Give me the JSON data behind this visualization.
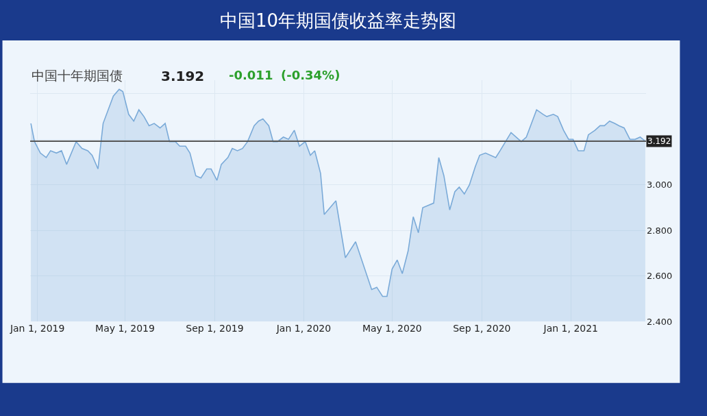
{
  "chart_data": {
    "type": "area",
    "title": "中国10年期国债收益率走势图",
    "subtitle": "中国十年期国债",
    "annotations": [
      "3.192",
      "-0.011",
      "(-0.34%)"
    ],
    "x": [
      "2018-12-23",
      "2018-12-28",
      "2019-01-05",
      "2019-01-13",
      "2019-01-19",
      "2019-01-27",
      "2019-02-03",
      "2019-02-10",
      "2019-02-23",
      "2019-03-03",
      "2019-03-11",
      "2019-03-17",
      "2019-03-25",
      "2019-04-01",
      "2019-04-15",
      "2019-04-23",
      "2019-04-28",
      "2019-05-06",
      "2019-05-13",
      "2019-05-20",
      "2019-05-27",
      "2019-06-03",
      "2019-06-10",
      "2019-06-18",
      "2019-06-25",
      "2019-07-01",
      "2019-07-09",
      "2019-07-15",
      "2019-07-23",
      "2019-07-29",
      "2019-08-06",
      "2019-08-13",
      "2019-08-21",
      "2019-08-27",
      "2019-09-04",
      "2019-09-10",
      "2019-09-19",
      "2019-09-25",
      "2019-10-02",
      "2019-10-09",
      "2019-10-16",
      "2019-10-25",
      "2019-10-31",
      "2019-11-06",
      "2019-11-14",
      "2019-11-20",
      "2019-11-26",
      "2019-12-04",
      "2019-12-11",
      "2019-12-19",
      "2019-12-26",
      "2020-01-03",
      "2020-01-10",
      "2020-01-16",
      "2020-01-24",
      "2020-01-29",
      "2020-02-14",
      "2020-02-27",
      "2020-03-12",
      "2020-04-03",
      "2020-04-10",
      "2020-04-18",
      "2020-04-24",
      "2020-05-01",
      "2020-05-08",
      "2020-05-15",
      "2020-05-23",
      "2020-05-30",
      "2020-06-06",
      "2020-06-12",
      "2020-06-27",
      "2020-07-04",
      "2020-07-11",
      "2020-07-19",
      "2020-07-26",
      "2020-08-01",
      "2020-08-08",
      "2020-08-15",
      "2020-08-23",
      "2020-08-29",
      "2020-09-06",
      "2020-09-20",
      "2020-09-26",
      "2020-10-11",
      "2020-10-25",
      "2020-11-01",
      "2020-11-15",
      "2020-11-24",
      "2020-11-29",
      "2020-12-08",
      "2020-12-14",
      "2020-12-22",
      "2020-12-29",
      "2021-01-04",
      "2021-01-11",
      "2021-01-19",
      "2021-01-25",
      "2021-02-03",
      "2021-02-10",
      "2021-02-16",
      "2021-02-23",
      "2021-03-02",
      "2021-03-08",
      "2021-03-15",
      "2021-03-23",
      "2021-03-30",
      "2021-04-06",
      "2021-04-13"
    ],
    "series": [
      {
        "color": "#7aaad8",
        "values": [
          3.27,
          3.19,
          3.14,
          3.12,
          3.15,
          3.14,
          3.15,
          3.09,
          3.19,
          3.16,
          3.15,
          3.13,
          3.07,
          3.27,
          3.39,
          3.42,
          3.41,
          3.31,
          3.28,
          3.33,
          3.3,
          3.26,
          3.27,
          3.25,
          3.27,
          3.19,
          3.19,
          3.17,
          3.17,
          3.14,
          3.04,
          3.03,
          3.07,
          3.07,
          3.02,
          3.09,
          3.12,
          3.16,
          3.15,
          3.16,
          3.19,
          3.26,
          3.28,
          3.29,
          3.26,
          3.19,
          3.19,
          3.21,
          3.2,
          3.24,
          3.17,
          3.19,
          3.13,
          3.15,
          3.05,
          2.87,
          2.93,
          2.68,
          2.75,
          2.54,
          2.55,
          2.51,
          2.51,
          2.63,
          2.67,
          2.61,
          2.71,
          2.86,
          2.79,
          2.9,
          2.92,
          3.12,
          3.04,
          2.89,
          2.97,
          2.99,
          2.96,
          3.0,
          3.08,
          3.13,
          3.14,
          3.12,
          3.15,
          3.23,
          3.19,
          3.21,
          3.33,
          3.31,
          3.3,
          3.31,
          3.3,
          3.24,
          3.2,
          3.2,
          3.15,
          3.15,
          3.22,
          3.24,
          3.26,
          3.26,
          3.28,
          3.27,
          3.26,
          3.25,
          3.2,
          3.2,
          3.21,
          3.192
        ]
      }
    ],
    "xlim": [
      "2018-12-22",
      "2021-04-14"
    ],
    "xticks": [
      {
        "value": "2019-01-01",
        "label": "Jan 1, 2019"
      },
      {
        "value": "2019-05-01",
        "label": "May 1, 2019"
      },
      {
        "value": "2019-09-01",
        "label": "Sep 1, 2019"
      },
      {
        "value": "2020-01-01",
        "label": "Jan 1, 2020"
      },
      {
        "value": "2020-05-01",
        "label": "May 1, 2020"
      },
      {
        "value": "2020-09-01",
        "label": "Sep 1, 2020"
      },
      {
        "value": "2021-01-01",
        "label": "Jan 1, 2021"
      }
    ],
    "ylim": [
      2.4,
      3.46
    ],
    "yticks": [
      {
        "value": 2.4,
        "label": "2.400"
      },
      {
        "value": 2.6,
        "label": "2.600"
      },
      {
        "value": 2.8,
        "label": "2.800"
      },
      {
        "value": 3.0,
        "label": "3.000"
      },
      {
        "value": 3.2,
        "label": null
      },
      {
        "value": 3.4,
        "label": null
      }
    ],
    "ref_lines": [
      {
        "axis": "y",
        "value": 3.192,
        "label": "3.192",
        "color": "#555555"
      }
    ],
    "grid": true
  }
}
